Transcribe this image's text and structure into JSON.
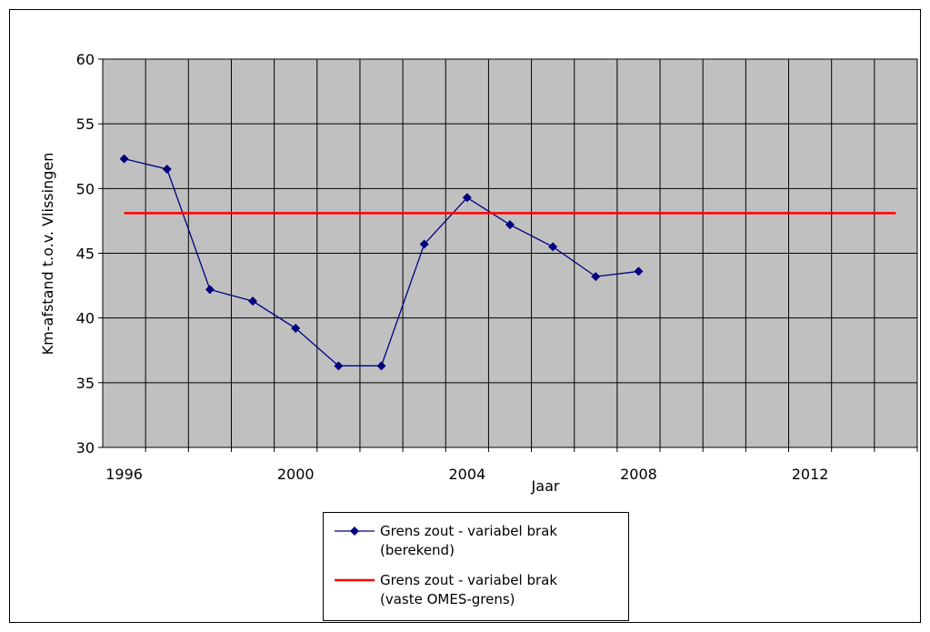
{
  "chart_data": {
    "type": "line",
    "xlabel": "Jaar",
    "ylabel": "Km-afstand t.o.v. Vlissingen",
    "xlim": [
      1995.5,
      2014.5
    ],
    "ylim": [
      30,
      60
    ],
    "yticks": [
      30,
      35,
      40,
      45,
      50,
      55,
      60
    ],
    "xtick_labels": [
      "1996",
      "2000",
      "2004",
      "2008",
      "2012"
    ],
    "grid": true,
    "plot_background": "#c0c0c0",
    "legend_position": "bottom-center",
    "series": [
      {
        "name": "Grens zout - variabel brak (berekend)",
        "color": "#000080",
        "marker": "diamond",
        "x": [
          1996,
          1997,
          1998,
          1999,
          2000,
          2001,
          2002,
          2003,
          2004,
          2005,
          2006,
          2007,
          2008
        ],
        "y": [
          52.3,
          51.5,
          42.2,
          41.3,
          39.2,
          36.3,
          36.3,
          45.7,
          49.3,
          47.2,
          45.5,
          43.2,
          43.6
        ]
      },
      {
        "name": "Grens zout - variabel brak (vaste OMES-grens)",
        "color": "#ff0000",
        "marker": "none",
        "x": [
          1996,
          2014
        ],
        "y": [
          48.1,
          48.1
        ]
      }
    ]
  },
  "legend": {
    "entries": [
      {
        "label_line1": "Grens zout - variabel brak",
        "label_line2": "(berekend)"
      },
      {
        "label_line1": "Grens zout - variabel brak",
        "label_line2": "(vaste OMES-grens)"
      }
    ]
  }
}
